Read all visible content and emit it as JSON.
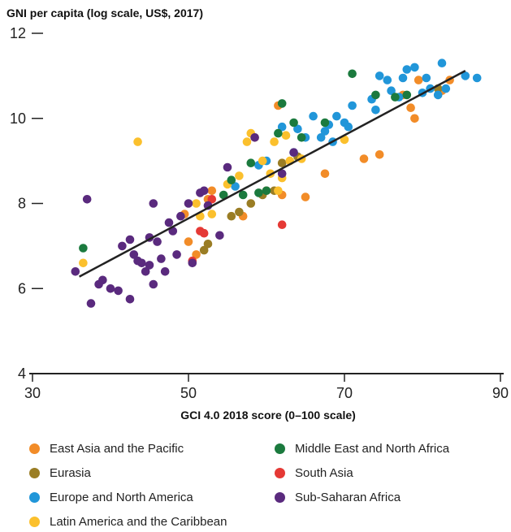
{
  "chart_data": {
    "type": "scatter",
    "title": "GNI per capita (log scale, US$, 2017)",
    "xlabel": "GCI 4.0 2018 score (0–100 scale)",
    "ylabel": "GNI per capita (log scale, US$, 2017)",
    "xlim": [
      30,
      90
    ],
    "ylim": [
      4,
      12
    ],
    "x_ticks": [
      "30",
      "50",
      "70",
      "90"
    ],
    "y_ticks": [
      "4",
      "6",
      "8",
      "10",
      "12"
    ],
    "grid": false,
    "legend_position": "bottom",
    "trendline": {
      "x": [
        36,
        85.5
      ],
      "y": [
        6.28,
        11.12
      ],
      "color": "#222222"
    },
    "series": [
      {
        "name": "East Asia and the Pacific",
        "color": "#f28c28",
        "points": [
          [
            49.5,
            7.75
          ],
          [
            50,
            7.1
          ],
          [
            51,
            6.8
          ],
          [
            52.5,
            8.1
          ],
          [
            53,
            8.3
          ],
          [
            57,
            7.7
          ],
          [
            60,
            8.3
          ],
          [
            61.5,
            10.3
          ],
          [
            62,
            8.2
          ],
          [
            65,
            8.15
          ],
          [
            67.5,
            8.7
          ],
          [
            72.5,
            9.05
          ],
          [
            74.5,
            9.15
          ],
          [
            77.5,
            10.55
          ],
          [
            78.5,
            10.25
          ],
          [
            79,
            10.0
          ],
          [
            79.5,
            10.9
          ],
          [
            82.5,
            10.65
          ],
          [
            83.5,
            10.9
          ]
        ]
      },
      {
        "name": "Eurasia",
        "color": "#9a7d24",
        "points": [
          [
            52,
            6.9
          ],
          [
            52.5,
            7.05
          ],
          [
            55.5,
            7.7
          ],
          [
            56.5,
            7.8
          ],
          [
            58,
            8.0
          ],
          [
            59.5,
            8.2
          ],
          [
            61,
            8.3
          ],
          [
            62,
            8.95
          ],
          [
            64,
            9.1
          ],
          [
            82,
            10.7
          ]
        ]
      },
      {
        "name": "Europe and North America",
        "color": "#2196d9",
        "points": [
          [
            56,
            8.4
          ],
          [
            59,
            8.9
          ],
          [
            60,
            9.0
          ],
          [
            62,
            9.8
          ],
          [
            63.5,
            9.2
          ],
          [
            64,
            9.75
          ],
          [
            65,
            9.55
          ],
          [
            66,
            10.05
          ],
          [
            67,
            9.55
          ],
          [
            67.5,
            9.7
          ],
          [
            68,
            9.85
          ],
          [
            68.5,
            9.45
          ],
          [
            69,
            10.05
          ],
          [
            70,
            9.9
          ],
          [
            70.5,
            9.8
          ],
          [
            71,
            10.3
          ],
          [
            73.5,
            10.45
          ],
          [
            74,
            10.2
          ],
          [
            74.5,
            11.0
          ],
          [
            75.5,
            10.9
          ],
          [
            76,
            10.65
          ],
          [
            77,
            10.5
          ],
          [
            77.5,
            10.95
          ],
          [
            78,
            11.15
          ],
          [
            79,
            11.2
          ],
          [
            80,
            10.6
          ],
          [
            80.5,
            10.95
          ],
          [
            81,
            10.7
          ],
          [
            82,
            10.55
          ],
          [
            82.5,
            11.3
          ],
          [
            83,
            10.7
          ],
          [
            85.5,
            11.0
          ],
          [
            87,
            10.95
          ]
        ]
      },
      {
        "name": "Latin America and the Caribbean",
        "color": "#fbc02d",
        "points": [
          [
            36.5,
            6.6
          ],
          [
            43.5,
            9.45
          ],
          [
            51,
            8.0
          ],
          [
            51.5,
            7.7
          ],
          [
            53,
            7.75
          ],
          [
            55,
            8.45
          ],
          [
            56.5,
            8.65
          ],
          [
            57.5,
            9.45
          ],
          [
            58,
            9.65
          ],
          [
            58.5,
            9.55
          ],
          [
            59.5,
            9.0
          ],
          [
            60.5,
            8.7
          ],
          [
            61,
            9.45
          ],
          [
            61.5,
            8.3
          ],
          [
            62,
            8.6
          ],
          [
            62.5,
            9.6
          ],
          [
            63,
            9.0
          ],
          [
            64.5,
            9.05
          ],
          [
            70,
            9.5
          ]
        ]
      },
      {
        "name": "Middle East and North Africa",
        "color": "#1b7a3e",
        "points": [
          [
            36.5,
            6.95
          ],
          [
            54.5,
            8.2
          ],
          [
            55.5,
            8.55
          ],
          [
            57,
            8.2
          ],
          [
            58,
            8.95
          ],
          [
            59,
            8.25
          ],
          [
            60,
            8.3
          ],
          [
            61.5,
            9.65
          ],
          [
            62,
            10.35
          ],
          [
            63.5,
            9.9
          ],
          [
            64.5,
            9.55
          ],
          [
            67.5,
            9.9
          ],
          [
            71,
            11.05
          ],
          [
            74,
            10.55
          ],
          [
            76.5,
            10.5
          ],
          [
            78,
            10.55
          ]
        ]
      },
      {
        "name": "South Asia",
        "color": "#e53935",
        "points": [
          [
            50.5,
            6.65
          ],
          [
            51.5,
            7.35
          ],
          [
            52,
            7.3
          ],
          [
            53,
            8.1
          ],
          [
            62,
            7.5
          ]
        ]
      },
      {
        "name": "Sub-Saharan Africa",
        "color": "#5a2a7e",
        "points": [
          [
            35.5,
            6.4
          ],
          [
            37,
            8.1
          ],
          [
            37.5,
            5.65
          ],
          [
            38.5,
            6.1
          ],
          [
            39,
            6.2
          ],
          [
            40,
            6.0
          ],
          [
            41,
            5.95
          ],
          [
            41.5,
            7.0
          ],
          [
            42.5,
            7.15
          ],
          [
            42.5,
            5.75
          ],
          [
            43,
            6.8
          ],
          [
            43.5,
            6.65
          ],
          [
            44,
            6.6
          ],
          [
            44.5,
            6.4
          ],
          [
            45,
            6.55
          ],
          [
            45,
            7.2
          ],
          [
            45.5,
            6.1
          ],
          [
            45.5,
            8.0
          ],
          [
            46,
            7.1
          ],
          [
            46.5,
            6.7
          ],
          [
            47,
            6.4
          ],
          [
            47.5,
            7.55
          ],
          [
            48,
            7.35
          ],
          [
            48.5,
            6.8
          ],
          [
            49,
            7.7
          ],
          [
            50,
            8.0
          ],
          [
            50.5,
            6.6
          ],
          [
            51.5,
            8.25
          ],
          [
            52,
            8.3
          ],
          [
            52.5,
            7.95
          ],
          [
            54,
            7.25
          ],
          [
            55,
            8.85
          ],
          [
            58.5,
            9.55
          ],
          [
            62,
            8.7
          ],
          [
            63.5,
            9.2
          ]
        ]
      }
    ]
  }
}
